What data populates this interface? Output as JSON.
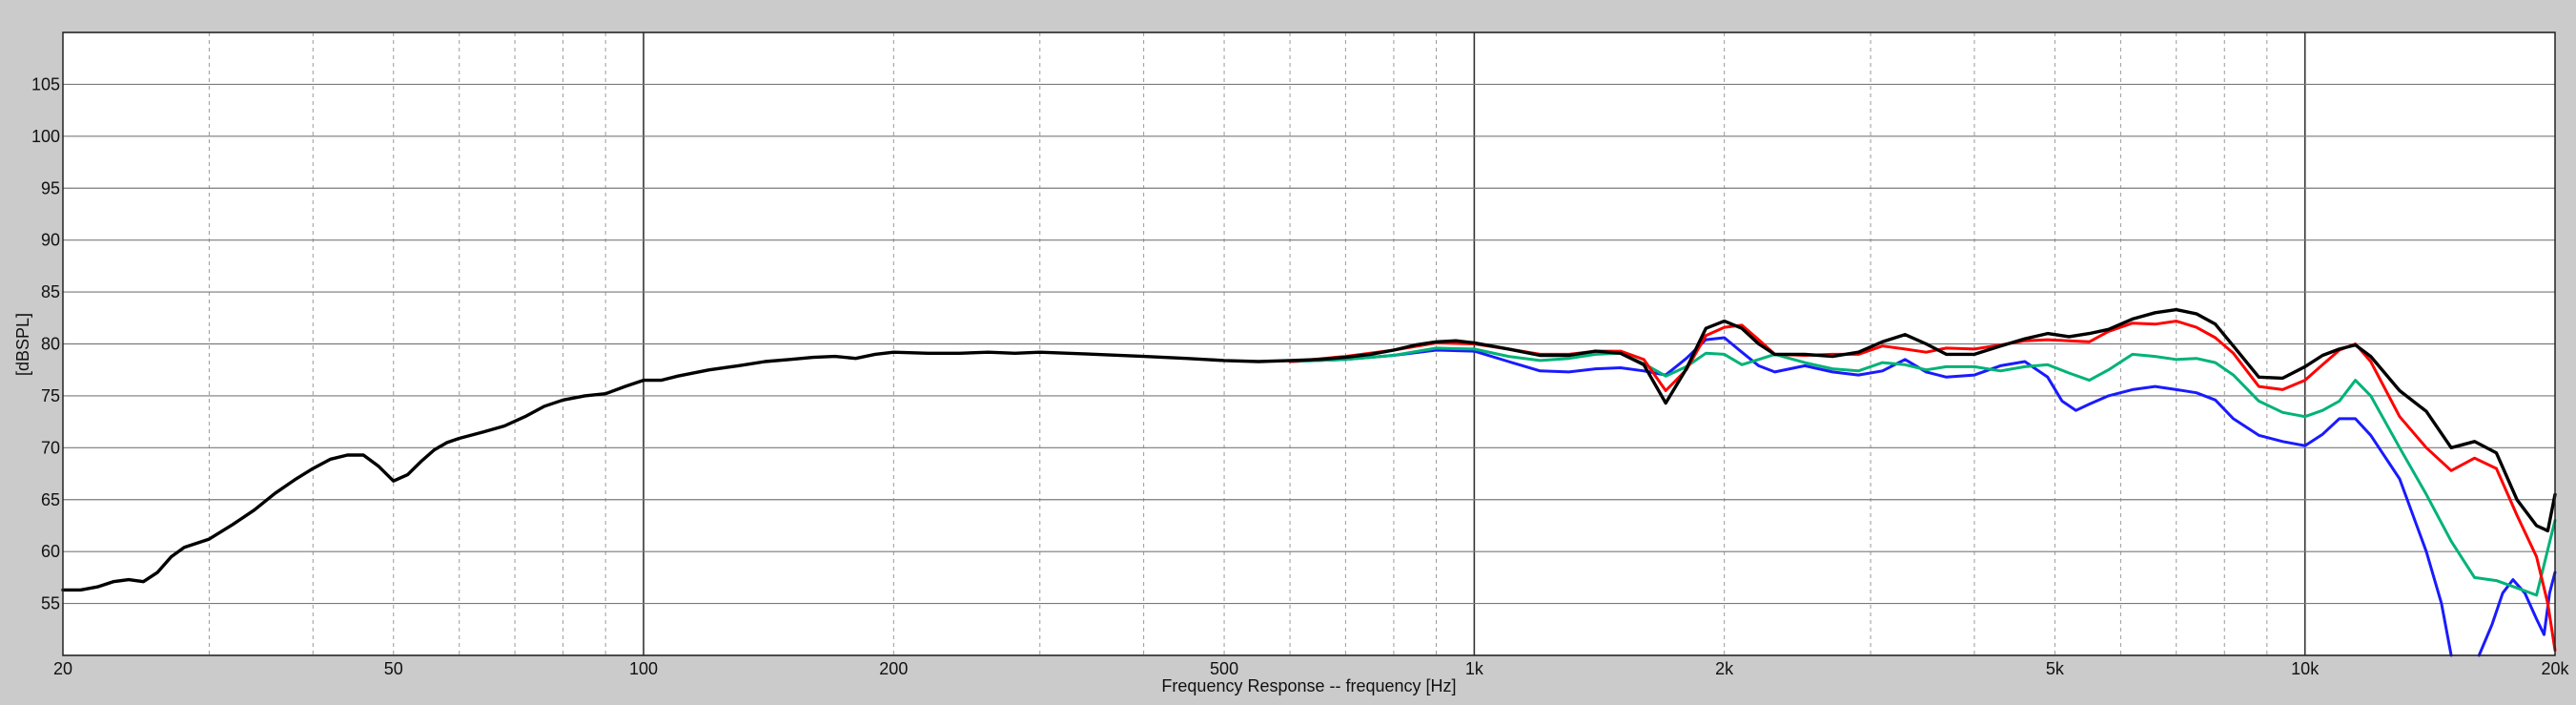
{
  "chart_data": {
    "type": "line",
    "title": "",
    "xlabel": "Frequency Response -- frequency [Hz]",
    "ylabel": "[dBSPL]",
    "x_scale": "log",
    "xlim": [
      20,
      20000
    ],
    "ylim": [
      50,
      110
    ],
    "grid": true,
    "legend": "none",
    "x_ticks": [
      {
        "value": 20,
        "label": "20"
      },
      {
        "value": 50,
        "label": "50"
      },
      {
        "value": 100,
        "label": "100"
      },
      {
        "value": 200,
        "label": "200"
      },
      {
        "value": 500,
        "label": "500"
      },
      {
        "value": 1000,
        "label": "1k"
      },
      {
        "value": 2000,
        "label": "2k"
      },
      {
        "value": 5000,
        "label": "5k"
      },
      {
        "value": 10000,
        "label": "10k"
      },
      {
        "value": 20000,
        "label": "20k"
      }
    ],
    "y_ticks": [
      {
        "value": 55,
        "label": "55"
      },
      {
        "value": 60,
        "label": "60"
      },
      {
        "value": 65,
        "label": "65"
      },
      {
        "value": 70,
        "label": "70"
      },
      {
        "value": 75,
        "label": "75"
      },
      {
        "value": 80,
        "label": "80"
      },
      {
        "value": 85,
        "label": "85"
      },
      {
        "value": 90,
        "label": "90"
      },
      {
        "value": 95,
        "label": "95"
      },
      {
        "value": 100,
        "label": "100"
      },
      {
        "value": 105,
        "label": "105"
      }
    ],
    "series": [
      {
        "color": "#1a1aff",
        "points": [
          [
            600,
            78.3
          ],
          [
            700,
            78.5
          ],
          [
            800,
            78.9
          ],
          [
            900,
            79.4
          ],
          [
            1000,
            79.3
          ],
          [
            1100,
            78.3
          ],
          [
            1200,
            77.4
          ],
          [
            1300,
            77.3
          ],
          [
            1400,
            77.6
          ],
          [
            1500,
            77.7
          ],
          [
            1600,
            77.4
          ],
          [
            1700,
            77.0
          ],
          [
            1800,
            78.6
          ],
          [
            1900,
            80.4
          ],
          [
            2000,
            80.6
          ],
          [
            2100,
            79.2
          ],
          [
            2200,
            77.9
          ],
          [
            2300,
            77.3
          ],
          [
            2500,
            77.9
          ],
          [
            2700,
            77.3
          ],
          [
            2900,
            77.0
          ],
          [
            3100,
            77.4
          ],
          [
            3300,
            78.5
          ],
          [
            3500,
            77.3
          ],
          [
            3700,
            76.8
          ],
          [
            4000,
            77.0
          ],
          [
            4300,
            77.9
          ],
          [
            4600,
            78.3
          ],
          [
            4900,
            76.8
          ],
          [
            5100,
            74.5
          ],
          [
            5300,
            73.6
          ],
          [
            5500,
            74.2
          ],
          [
            5800,
            75.0
          ],
          [
            6200,
            75.6
          ],
          [
            6600,
            75.9
          ],
          [
            7000,
            75.6
          ],
          [
            7400,
            75.3
          ],
          [
            7800,
            74.6
          ],
          [
            8200,
            72.8
          ],
          [
            8800,
            71.2
          ],
          [
            9400,
            70.6
          ],
          [
            10000,
            70.2
          ],
          [
            10500,
            71.3
          ],
          [
            11000,
            72.8
          ],
          [
            11500,
            72.8
          ],
          [
            12000,
            71.2
          ],
          [
            13000,
            67.0
          ],
          [
            14000,
            60.0
          ],
          [
            14600,
            55.0
          ],
          [
            15000,
            50.0
          ]
        ]
      },
      {
        "color": "#1a1aff",
        "points": [
          [
            16200,
            50.0
          ],
          [
            16800,
            53.0
          ],
          [
            17300,
            56.0
          ],
          [
            17800,
            57.3
          ],
          [
            18400,
            56.0
          ],
          [
            19000,
            53.5
          ],
          [
            19400,
            52.0
          ],
          [
            19700,
            56.0
          ],
          [
            20000,
            58.0
          ]
        ]
      },
      {
        "color": "#00b377",
        "points": [
          [
            600,
            78.3
          ],
          [
            700,
            78.5
          ],
          [
            800,
            78.9
          ],
          [
            900,
            79.6
          ],
          [
            1000,
            79.5
          ],
          [
            1100,
            78.8
          ],
          [
            1200,
            78.4
          ],
          [
            1300,
            78.6
          ],
          [
            1400,
            79.0
          ],
          [
            1500,
            79.1
          ],
          [
            1600,
            78.1
          ],
          [
            1700,
            76.9
          ],
          [
            1800,
            77.8
          ],
          [
            1900,
            79.1
          ],
          [
            2000,
            79.0
          ],
          [
            2100,
            78.0
          ],
          [
            2200,
            78.5
          ],
          [
            2300,
            79.0
          ],
          [
            2500,
            78.2
          ],
          [
            2700,
            77.6
          ],
          [
            2900,
            77.4
          ],
          [
            3100,
            78.2
          ],
          [
            3300,
            78.0
          ],
          [
            3500,
            77.5
          ],
          [
            3700,
            77.8
          ],
          [
            4000,
            77.8
          ],
          [
            4300,
            77.4
          ],
          [
            4600,
            77.8
          ],
          [
            4900,
            78.0
          ],
          [
            5200,
            77.2
          ],
          [
            5500,
            76.5
          ],
          [
            5800,
            77.5
          ],
          [
            6200,
            79.0
          ],
          [
            6600,
            78.8
          ],
          [
            7000,
            78.5
          ],
          [
            7400,
            78.6
          ],
          [
            7800,
            78.2
          ],
          [
            8200,
            77.0
          ],
          [
            8800,
            74.5
          ],
          [
            9400,
            73.4
          ],
          [
            10000,
            73.0
          ],
          [
            10500,
            73.6
          ],
          [
            11000,
            74.5
          ],
          [
            11500,
            76.5
          ],
          [
            12000,
            75.0
          ],
          [
            13000,
            70.0
          ],
          [
            14000,
            65.5
          ],
          [
            15000,
            61.0
          ],
          [
            16000,
            57.5
          ],
          [
            17000,
            57.2
          ],
          [
            18000,
            56.5
          ],
          [
            19000,
            55.8
          ],
          [
            20000,
            63.0
          ]
        ]
      },
      {
        "color": "#ff0000",
        "points": [
          [
            600,
            78.3
          ],
          [
            700,
            78.8
          ],
          [
            800,
            79.4
          ],
          [
            900,
            80.1
          ],
          [
            1000,
            80.0
          ],
          [
            1100,
            79.5
          ],
          [
            1200,
            79.0
          ],
          [
            1300,
            79.0
          ],
          [
            1400,
            79.3
          ],
          [
            1500,
            79.3
          ],
          [
            1600,
            78.5
          ],
          [
            1700,
            75.5
          ],
          [
            1800,
            77.5
          ],
          [
            1900,
            80.8
          ],
          [
            2000,
            81.6
          ],
          [
            2100,
            81.8
          ],
          [
            2200,
            80.4
          ],
          [
            2300,
            79.0
          ],
          [
            2500,
            78.9
          ],
          [
            2700,
            79.0
          ],
          [
            2900,
            79.0
          ],
          [
            3100,
            79.8
          ],
          [
            3300,
            79.5
          ],
          [
            3500,
            79.2
          ],
          [
            3700,
            79.6
          ],
          [
            4000,
            79.5
          ],
          [
            4300,
            79.9
          ],
          [
            4600,
            80.3
          ],
          [
            4900,
            80.4
          ],
          [
            5200,
            80.3
          ],
          [
            5500,
            80.2
          ],
          [
            5800,
            81.2
          ],
          [
            6200,
            82.0
          ],
          [
            6600,
            81.9
          ],
          [
            7000,
            82.2
          ],
          [
            7400,
            81.6
          ],
          [
            7800,
            80.6
          ],
          [
            8200,
            79.1
          ],
          [
            8800,
            75.9
          ],
          [
            9400,
            75.6
          ],
          [
            10000,
            76.5
          ],
          [
            10500,
            78.0
          ],
          [
            11000,
            79.4
          ],
          [
            11500,
            80.0
          ],
          [
            12000,
            78.3
          ],
          [
            13000,
            73.0
          ],
          [
            14000,
            70.0
          ],
          [
            15000,
            67.8
          ],
          [
            16000,
            69.0
          ],
          [
            17000,
            68.0
          ],
          [
            18000,
            63.5
          ],
          [
            19000,
            59.5
          ],
          [
            19600,
            55.0
          ],
          [
            20000,
            50.5
          ]
        ]
      },
      {
        "color": "#000000",
        "points": [
          [
            20,
            56.3
          ],
          [
            21,
            56.3
          ],
          [
            22,
            56.6
          ],
          [
            23,
            57.1
          ],
          [
            24,
            57.3
          ],
          [
            25,
            57.1
          ],
          [
            26,
            58.0
          ],
          [
            27,
            59.5
          ],
          [
            28,
            60.4
          ],
          [
            30,
            61.2
          ],
          [
            32,
            62.6
          ],
          [
            34,
            64.0
          ],
          [
            36,
            65.6
          ],
          [
            38,
            66.9
          ],
          [
            40,
            68.0
          ],
          [
            42,
            68.9
          ],
          [
            44,
            69.3
          ],
          [
            46,
            69.3
          ],
          [
            48,
            68.2
          ],
          [
            50,
            66.8
          ],
          [
            52,
            67.4
          ],
          [
            54,
            68.7
          ],
          [
            56,
            69.8
          ],
          [
            58,
            70.5
          ],
          [
            60,
            70.9
          ],
          [
            64,
            71.5
          ],
          [
            68,
            72.1
          ],
          [
            72,
            73.0
          ],
          [
            76,
            74.0
          ],
          [
            80,
            74.6
          ],
          [
            85,
            75.0
          ],
          [
            90,
            75.2
          ],
          [
            95,
            75.9
          ],
          [
            100,
            76.5
          ],
          [
            105,
            76.5
          ],
          [
            110,
            76.9
          ],
          [
            120,
            77.5
          ],
          [
            130,
            77.9
          ],
          [
            140,
            78.3
          ],
          [
            150,
            78.5
          ],
          [
            160,
            78.7
          ],
          [
            170,
            78.8
          ],
          [
            180,
            78.6
          ],
          [
            190,
            79.0
          ],
          [
            200,
            79.2
          ],
          [
            220,
            79.1
          ],
          [
            240,
            79.1
          ],
          [
            260,
            79.2
          ],
          [
            280,
            79.1
          ],
          [
            300,
            79.2
          ],
          [
            350,
            79.0
          ],
          [
            400,
            78.8
          ],
          [
            450,
            78.6
          ],
          [
            500,
            78.4
          ],
          [
            550,
            78.3
          ],
          [
            600,
            78.4
          ],
          [
            650,
            78.5
          ],
          [
            700,
            78.7
          ],
          [
            750,
            79.0
          ],
          [
            800,
            79.4
          ],
          [
            850,
            79.9
          ],
          [
            900,
            80.2
          ],
          [
            950,
            80.3
          ],
          [
            1000,
            80.1
          ],
          [
            1100,
            79.5
          ],
          [
            1200,
            78.9
          ],
          [
            1300,
            78.9
          ],
          [
            1400,
            79.3
          ],
          [
            1500,
            79.1
          ],
          [
            1600,
            78.0
          ],
          [
            1700,
            74.3
          ],
          [
            1800,
            77.6
          ],
          [
            1900,
            81.5
          ],
          [
            2000,
            82.2
          ],
          [
            2100,
            81.5
          ],
          [
            2200,
            80.0
          ],
          [
            2300,
            79.0
          ],
          [
            2500,
            79.0
          ],
          [
            2700,
            78.8
          ],
          [
            2900,
            79.2
          ],
          [
            3100,
            80.2
          ],
          [
            3300,
            80.9
          ],
          [
            3500,
            80.0
          ],
          [
            3700,
            79.0
          ],
          [
            4000,
            79.0
          ],
          [
            4300,
            79.8
          ],
          [
            4600,
            80.5
          ],
          [
            4900,
            81.0
          ],
          [
            5200,
            80.7
          ],
          [
            5500,
            81.0
          ],
          [
            5800,
            81.4
          ],
          [
            6200,
            82.4
          ],
          [
            6600,
            83.0
          ],
          [
            7000,
            83.3
          ],
          [
            7400,
            82.9
          ],
          [
            7800,
            81.9
          ],
          [
            8200,
            79.8
          ],
          [
            8800,
            76.8
          ],
          [
            9400,
            76.7
          ],
          [
            10000,
            77.8
          ],
          [
            10500,
            78.9
          ],
          [
            11000,
            79.5
          ],
          [
            11500,
            79.9
          ],
          [
            12000,
            78.8
          ],
          [
            13000,
            75.5
          ],
          [
            14000,
            73.5
          ],
          [
            15000,
            70.0
          ],
          [
            16000,
            70.6
          ],
          [
            17000,
            69.5
          ],
          [
            18000,
            65.0
          ],
          [
            19000,
            62.5
          ],
          [
            19600,
            62.0
          ],
          [
            20000,
            65.5
          ]
        ]
      }
    ]
  }
}
